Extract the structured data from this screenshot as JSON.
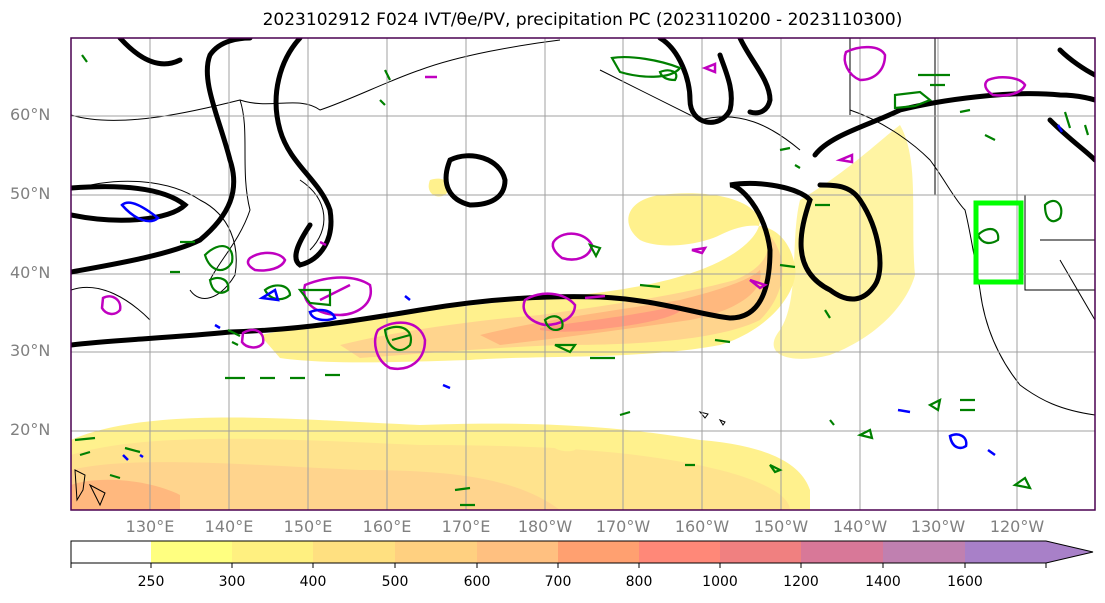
{
  "title": "2023102912 F024 IVT/θe/PV, precipitation PC (2023110200 - 2023110300)",
  "map": {
    "lat_labels": [
      "60°N",
      "50°N",
      "40°N",
      "30°N",
      "20°N"
    ],
    "lon_labels": [
      "130°E",
      "140°E",
      "150°E",
      "160°E",
      "170°E",
      "180°W",
      "170°W",
      "160°W",
      "150°W",
      "140°W",
      "130°W",
      "120°W"
    ],
    "target_box_color": "#00ff00",
    "contour_colors": {
      "theta_e": "#000000",
      "pv": "#c000c0",
      "precip_pos": "#008000",
      "precip_neg": "#0000ff"
    }
  },
  "colorbar": {
    "ticks": [
      "250",
      "300",
      "400",
      "500",
      "600",
      "700",
      "800",
      "1000",
      "1200",
      "1400",
      "1600"
    ],
    "colors": [
      "#ffffff",
      "#ffff80",
      "#fff080",
      "#ffe080",
      "#ffd080",
      "#ffc080",
      "#ffa070",
      "#ff8878",
      "#f08080",
      "#d87898",
      "#c080b0",
      "#a880c8"
    ]
  }
}
